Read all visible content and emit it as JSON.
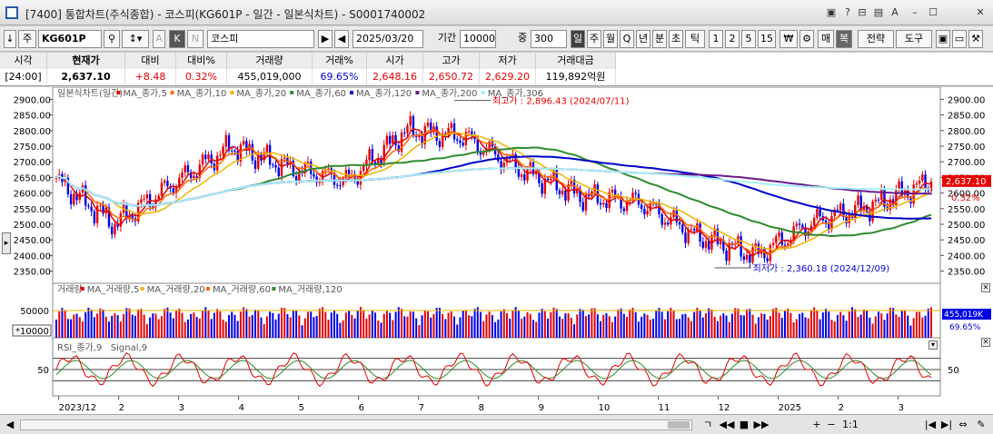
{
  "window": {
    "title": "[7400]  통합차트(주식종합) - 코스피(KG601P - 일간 - 일본식차트) - S0001740002",
    "buttons": [
      "▣",
      "?",
      "⊟",
      "▤",
      "A",
      "–",
      "☐",
      "✕"
    ]
  },
  "toolbar": {
    "nav_arrow": "↓",
    "market": "주",
    "code": "KG601P",
    "name": "코스피",
    "date": "2025/03/20",
    "period_label": "기간",
    "period_value": "10000",
    "count_label": "중",
    "count_value": "300",
    "intervals": [
      "일",
      "주",
      "월",
      "Q",
      "년",
      "분",
      "초",
      "틱",
      "1",
      "2",
      "5",
      "15",
      "₩"
    ],
    "options": [
      "매",
      "복"
    ],
    "strategy": "전략",
    "tools": "도구"
  },
  "quote": {
    "headers": [
      "시각",
      "현재가",
      "대비",
      "대비%",
      "거래량",
      "거래%",
      "시가",
      "고가",
      "저가",
      "거래대금"
    ],
    "values": [
      "[24:00]",
      "2,637.10",
      "+8.48",
      "0.32%",
      "455,019,000",
      "69.65%",
      "2,648.16",
      "2,650.72",
      "2,629.20",
      "119,892억원"
    ]
  },
  "price_panel": {
    "legend": [
      {
        "text": "일본식차트(일간)",
        "color": "#555555"
      },
      {
        "text": "MA_종가,5",
        "color": "#e60000"
      },
      {
        "text": "MA_종가,10",
        "color": "#ff6a00"
      },
      {
        "text": "MA_종가,20",
        "color": "#f0b400"
      },
      {
        "text": "MA_종가,60",
        "color": "#2e8b2e"
      },
      {
        "text": "MA_종가,120",
        "color": "#0000cc"
      },
      {
        "text": "MA_종가,200",
        "color": "#6a1a8a"
      },
      {
        "text": "MA_종가,306",
        "color": "#a8f0f8"
      }
    ],
    "y_ticks": [
      "2900.00",
      "2850.00",
      "2800.00",
      "2750.00",
      "2700.00",
      "2650.00",
      "2600.00",
      "2550.00",
      "2500.00",
      "2450.00",
      "2400.00",
      "2350.00"
    ],
    "high_note": "최고가 : 2,896.43 (2024/07/11)",
    "low_note": "최저가 : 2,360.18 (2024/12/09)",
    "current_label": "2,637.10",
    "change_label": "0.32%"
  },
  "volume_panel": {
    "legend": [
      {
        "text": "거래량",
        "color": "#555555"
      },
      {
        "text": "MA_거래량,5",
        "color": "#e60000"
      },
      {
        "text": "MA_거래량,20",
        "color": "#f0b400"
      },
      {
        "text": "MA_거래량,60",
        "color": "#ff6a00"
      },
      {
        "text": "MA_거래량,120",
        "color": "#2e8b2e"
      }
    ],
    "tick_label": "50000",
    "unit_label": "*10000",
    "volume_label": "455,019K",
    "ratio_label": "69.65%"
  },
  "rsi_panel": {
    "legend": [
      {
        "text": "RSI_종가,9",
        "color": "#e60000"
      },
      {
        "text": "Signal,9",
        "color": "#2e8b2e"
      }
    ],
    "tick_label": "50"
  },
  "x_labels": [
    "2023/12",
    "2",
    "3",
    "4",
    "5",
    "6",
    "7",
    "8",
    "9",
    "10",
    "11",
    "12",
    "2025",
    "2",
    "3"
  ],
  "bottom": {
    "buttons": [
      "◀",
      "ㄱ",
      "◀◀",
      "■",
      "▶▶",
      "+",
      "−",
      "1:1",
      "|◀",
      "▶|",
      "⇔",
      "⇆",
      "✎"
    ]
  },
  "chart_data": {
    "type": "candlestick",
    "x": [
      "2023-12",
      "2024-01",
      "2024-02",
      "2024-03",
      "2024-04",
      "2024-05",
      "2024-06",
      "2024-07",
      "2024-08",
      "2024-09",
      "2024-10",
      "2024-11",
      "2024-12",
      "2025-01",
      "2025-02",
      "2025-03"
    ],
    "close": [
      2640,
      2500,
      2630,
      2750,
      2680,
      2640,
      2800,
      2780,
      2670,
      2590,
      2570,
      2460,
      2400,
      2510,
      2560,
      2637
    ],
    "ylim": [
      2340,
      2910
    ],
    "high_point": {
      "value": 2896.43,
      "date": "2024/07/11"
    },
    "low_point": {
      "value": 2360.18,
      "date": "2024/12/09"
    },
    "last": {
      "value": 2637.1,
      "change": 8.48,
      "change_pct": 0.32
    },
    "volume": {
      "last": 455019,
      "unit": "K",
      "ratio_pct": 69.65
    },
    "rsi_level": 50
  }
}
